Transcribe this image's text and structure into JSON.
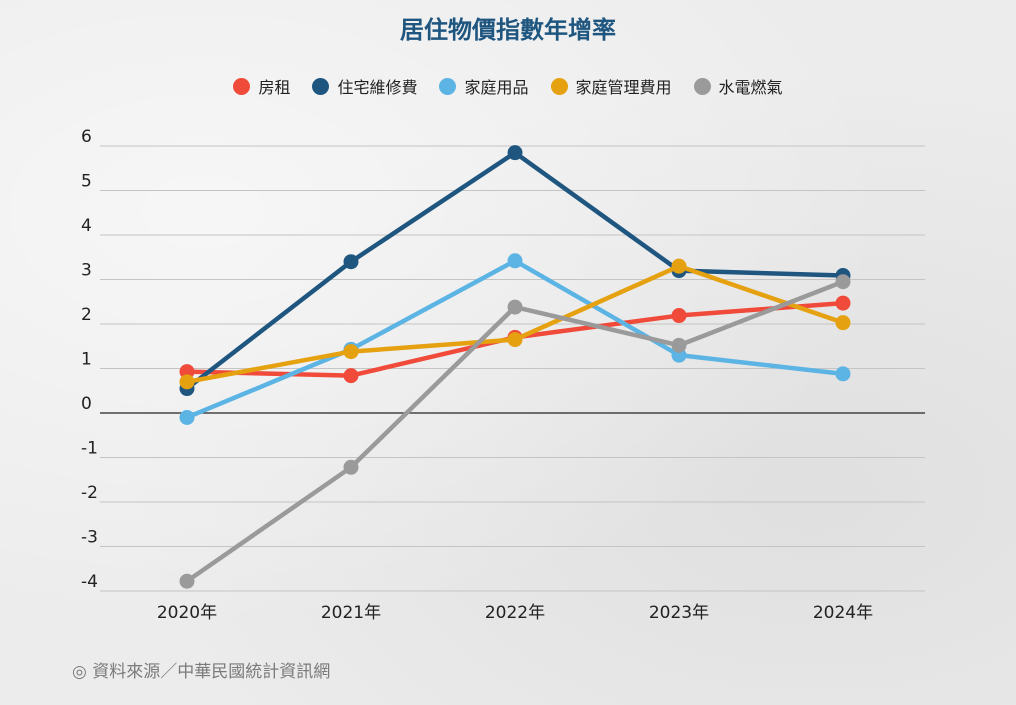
{
  "chart_data": {
    "type": "line",
    "title": "居住物價指數年增率",
    "xlabel": "",
    "ylabel": "",
    "categories": [
      "2020年",
      "2021年",
      "2022年",
      "2023年",
      "2024年"
    ],
    "ylim": [
      -4,
      6
    ],
    "yticks": [
      6,
      5,
      4,
      3,
      2,
      1,
      0,
      -1,
      -2,
      -3,
      -4
    ],
    "grid": true,
    "legend_position": "top",
    "series": [
      {
        "name": "房租",
        "color": "#f04b3a",
        "values": [
          0.93,
          0.84,
          1.7,
          2.19,
          2.47
        ]
      },
      {
        "name": "住宅維修費",
        "color": "#1f5680",
        "values": [
          0.55,
          3.4,
          5.85,
          3.2,
          3.09
        ]
      },
      {
        "name": "家庭用品",
        "color": "#5cb4e4",
        "values": [
          -0.1,
          1.43,
          3.42,
          1.3,
          0.88
        ]
      },
      {
        "name": "家庭管理費用",
        "color": "#e5a10f",
        "values": [
          0.7,
          1.38,
          1.65,
          3.3,
          2.03
        ]
      },
      {
        "name": "水電燃氣",
        "color": "#9a9a9a",
        "values": [
          -3.78,
          -1.22,
          2.38,
          1.52,
          2.95
        ]
      }
    ]
  },
  "source": "◎ 資料來源／中華民國統計資訊網"
}
